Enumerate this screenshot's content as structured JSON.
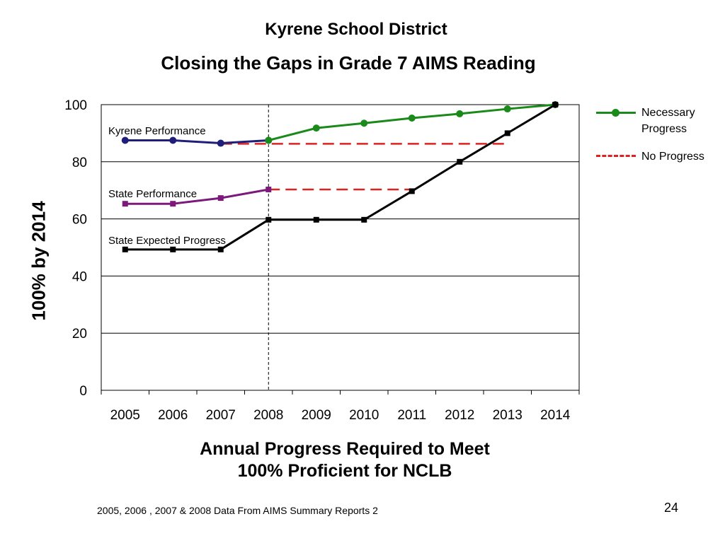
{
  "page": {
    "title": "Kyrene School District",
    "footnote": "2005, 2006 , 2007 & 2008 Data From AIMS Summary Reports 2",
    "page_number": "24"
  },
  "chart_data": {
    "type": "line",
    "title": "Closing the Gaps in Grade 7 AIMS Reading",
    "xlabel_lines": [
      "Annual Progress Required to Meet",
      "100% Proficient for NCLB"
    ],
    "ylabel": "100% by 2014",
    "categories": [
      "2005",
      "2006",
      "2007",
      "2008",
      "2009",
      "2010",
      "2011",
      "2012",
      "2013",
      "2014"
    ],
    "ylim": [
      0,
      100
    ],
    "yticks": [
      0,
      20,
      40,
      60,
      80,
      100
    ],
    "grid": "horizontal",
    "reference_line_at": "2008",
    "series": [
      {
        "name": "Kyrene Performance",
        "style": "solid",
        "marker": "circle",
        "color": "#1f1f7a",
        "values": [
          87.5,
          87.5,
          86.5,
          87.5,
          null,
          null,
          null,
          null,
          null,
          null
        ]
      },
      {
        "name": "Necessary Progress",
        "style": "solid",
        "marker": "circle",
        "color": "#1a8a1a",
        "values": [
          null,
          null,
          null,
          87.5,
          91.8,
          93.5,
          95.3,
          96.8,
          98.5,
          100
        ]
      },
      {
        "name": "State Performance",
        "style": "solid",
        "marker": "square",
        "color": "#7b1a7b",
        "values": [
          65.3,
          65.3,
          67.3,
          70.3,
          null,
          null,
          null,
          null,
          null,
          null
        ]
      },
      {
        "name": "State Expected Progress",
        "style": "solid",
        "marker": "square",
        "color": "#000000",
        "values": [
          49.3,
          49.3,
          49.3,
          59.7,
          59.7,
          59.7,
          69.7,
          80,
          90,
          100
        ]
      },
      {
        "name": "No Progress",
        "style": "dashed",
        "marker": "none",
        "color": "#dd2222",
        "values": [
          null,
          null,
          86.3,
          86.3,
          86.3,
          86.3,
          86.3,
          86.3,
          86.3,
          null
        ]
      },
      {
        "name": "No Progress",
        "style": "dashed",
        "marker": "none",
        "color": "#dd2222",
        "values": [
          null,
          null,
          null,
          70.3,
          70.3,
          70.3,
          70.3,
          null,
          null,
          null
        ]
      }
    ],
    "annotations": [
      {
        "text": "Kyrene Performance",
        "series": "Kyrene Performance"
      },
      {
        "text": "State Performance",
        "series": "State Performance"
      },
      {
        "text": "State Expected Progress",
        "series": "State Expected Progress"
      }
    ],
    "legend": {
      "position": "right",
      "items": [
        {
          "label": "Necessary Progress",
          "color": "#1a8a1a",
          "style": "solid-marker"
        },
        {
          "label": "No Progress",
          "color": "#dd2222",
          "style": "dashed"
        }
      ]
    }
  }
}
